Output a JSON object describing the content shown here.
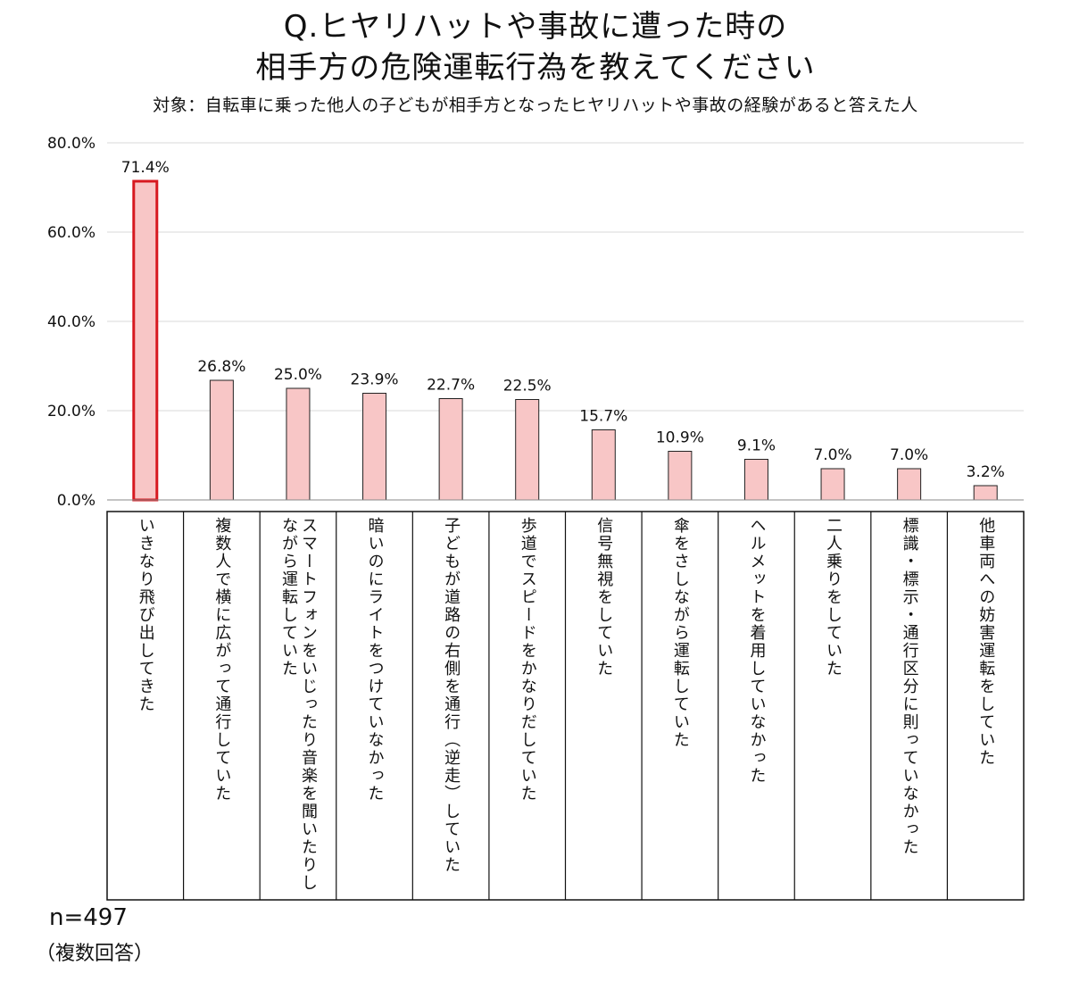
{
  "title_line1": "Q.ヒヤリハットや事故に遭った時の",
  "title_line2": "相手方の危険運転行為を教えてください",
  "subtitle": "対象：自転車に乗った他人の子どもが相手方となったヒヤリハットや事故の経験があると答えた人",
  "sample_size": "n=497",
  "note": "（複数回答）",
  "colors": {
    "bar_fill": "#f8c6c6",
    "highlight_border": "#d71920",
    "bar_border": "#222222",
    "grid": "#d9d9d9"
  },
  "chart_data": {
    "type": "bar",
    "title": "Q.ヒヤリハットや事故に遭った時の相手方の危険運転行為を教えてください",
    "ylim": [
      0,
      80
    ],
    "yticks": [
      "0.0%",
      "20.0%",
      "40.0%",
      "60.0%",
      "80.0%"
    ],
    "ytick_values": [
      0,
      20,
      40,
      60,
      80
    ],
    "grid": true,
    "categories": [
      "いきなり飛び出してきた",
      "複数人で横に広がって通行していた",
      "スマートフォンをいじったり音楽を聞いたりしながら運転していた",
      "暗いのにライトをつけていなかった",
      "子どもが道路の右側を通行（逆走）していた",
      "歩道でスピードをかなりだしていた",
      "信号無視をしていた",
      "傘をさしながら運転していた",
      "ヘルメットを着用していなかった",
      "二人乗りをしていた",
      "標識・標示・通行区分に則っていなかった",
      "他車両への妨害運転をしていた"
    ],
    "values": [
      71.4,
      26.8,
      25.0,
      23.9,
      22.7,
      22.5,
      15.7,
      10.9,
      9.1,
      7.0,
      7.0,
      3.2
    ],
    "value_labels": [
      "71.4%",
      "26.8%",
      "25.0%",
      "23.9%",
      "22.7%",
      "22.5%",
      "15.7%",
      "10.9%",
      "9.1%",
      "7.0%",
      "7.0%",
      "3.2%"
    ],
    "highlight_index": 0
  }
}
